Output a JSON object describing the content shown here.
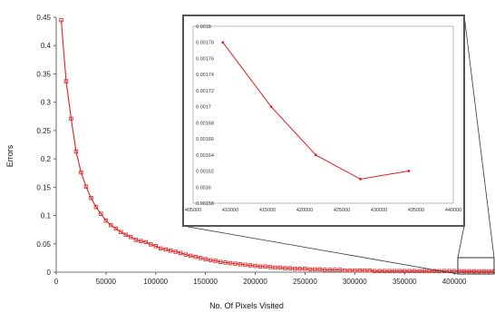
{
  "chart_data": [
    {
      "type": "line",
      "xlabel": "No. Of Pixels Visited",
      "ylabel": "Errors",
      "xlim": [
        0,
        440000
      ],
      "ylim": [
        0,
        0.45
      ],
      "x_ticks": [
        "0",
        "50000",
        "100000",
        "150000",
        "200000",
        "250000",
        "300000",
        "350000",
        "400000"
      ],
      "y_ticks": [
        "0",
        "0.05",
        "0.1",
        "0.15",
        "0.2",
        "0.25",
        "0.3",
        "0.35",
        "0.4",
        "0.45"
      ],
      "grid": false,
      "marker": "square",
      "color": "#e02020",
      "series": [
        {
          "x": [
            5000,
            10000,
            15000,
            20000,
            25000,
            30000,
            35000,
            40000,
            45000,
            50000,
            55000,
            60000,
            65000,
            70000,
            75000,
            80000,
            85000,
            90000,
            95000,
            100000,
            105000,
            110000,
            115000,
            120000,
            125000,
            130000,
            135000,
            140000,
            145000,
            150000,
            155000,
            160000,
            165000,
            170000,
            175000,
            180000,
            185000,
            190000,
            195000,
            200000,
            205000,
            210000,
            215000,
            220000,
            225000,
            230000,
            235000,
            240000,
            245000,
            250000,
            255000,
            260000,
            265000,
            270000,
            275000,
            280000,
            285000,
            290000,
            295000,
            300000,
            305000,
            310000,
            315000,
            320000,
            325000,
            330000,
            335000,
            340000,
            345000,
            350000,
            355000,
            360000,
            365000,
            370000,
            375000,
            380000,
            385000,
            390000,
            395000,
            400000,
            405000,
            410000,
            415000,
            420000,
            425000,
            430000,
            435000,
            440000
          ],
          "y": [
            0.445,
            0.337,
            0.271,
            0.213,
            0.176,
            0.151,
            0.131,
            0.115,
            0.103,
            0.091,
            0.083,
            0.077,
            0.071,
            0.066,
            0.062,
            0.057,
            0.055,
            0.053,
            0.049,
            0.046,
            0.042,
            0.04,
            0.038,
            0.036,
            0.034,
            0.031,
            0.029,
            0.027,
            0.025,
            0.023,
            0.021,
            0.02,
            0.018,
            0.017,
            0.016,
            0.015,
            0.014,
            0.013,
            0.012,
            0.011,
            0.01,
            0.01,
            0.009,
            0.008,
            0.008,
            0.007,
            0.007,
            0.006,
            0.006,
            0.006,
            0.005,
            0.005,
            0.005,
            0.004,
            0.004,
            0.004,
            0.004,
            0.003,
            0.003,
            0.003,
            0.003,
            0.003,
            0.003,
            0.002,
            0.002,
            0.002,
            0.002,
            0.002,
            0.002,
            0.002,
            0.002,
            0.002,
            0.002,
            0.002,
            0.002,
            0.002,
            0.002,
            0.002,
            0.002,
            0.002,
            0.002,
            0.00178,
            0.0017,
            0.00164,
            0.00161,
            0.00162,
            0.00162,
            0.00162
          ]
        }
      ]
    },
    {
      "type": "line",
      "role": "inset",
      "xlim": [
        405000,
        440000
      ],
      "ylim": [
        0.00158,
        0.0018
      ],
      "x_ticks": [
        "405000",
        "410000",
        "415000",
        "420000",
        "425000",
        "430000",
        "435000",
        "440000"
      ],
      "y_ticks": [
        "0.00158",
        "0.0016",
        "0.00162",
        "0.00164",
        "0.00166",
        "0.00168",
        "0.0017",
        "0.00172",
        "0.00174",
        "0.00176",
        "0.00178",
        "0.0018"
      ],
      "marker": "point",
      "color": "#e02020",
      "series": [
        {
          "x": [
            409000,
            415500,
            421500,
            427500,
            434000
          ],
          "y": [
            0.00178,
            0.0017,
            0.00164,
            0.00161,
            0.00162
          ]
        }
      ]
    }
  ]
}
